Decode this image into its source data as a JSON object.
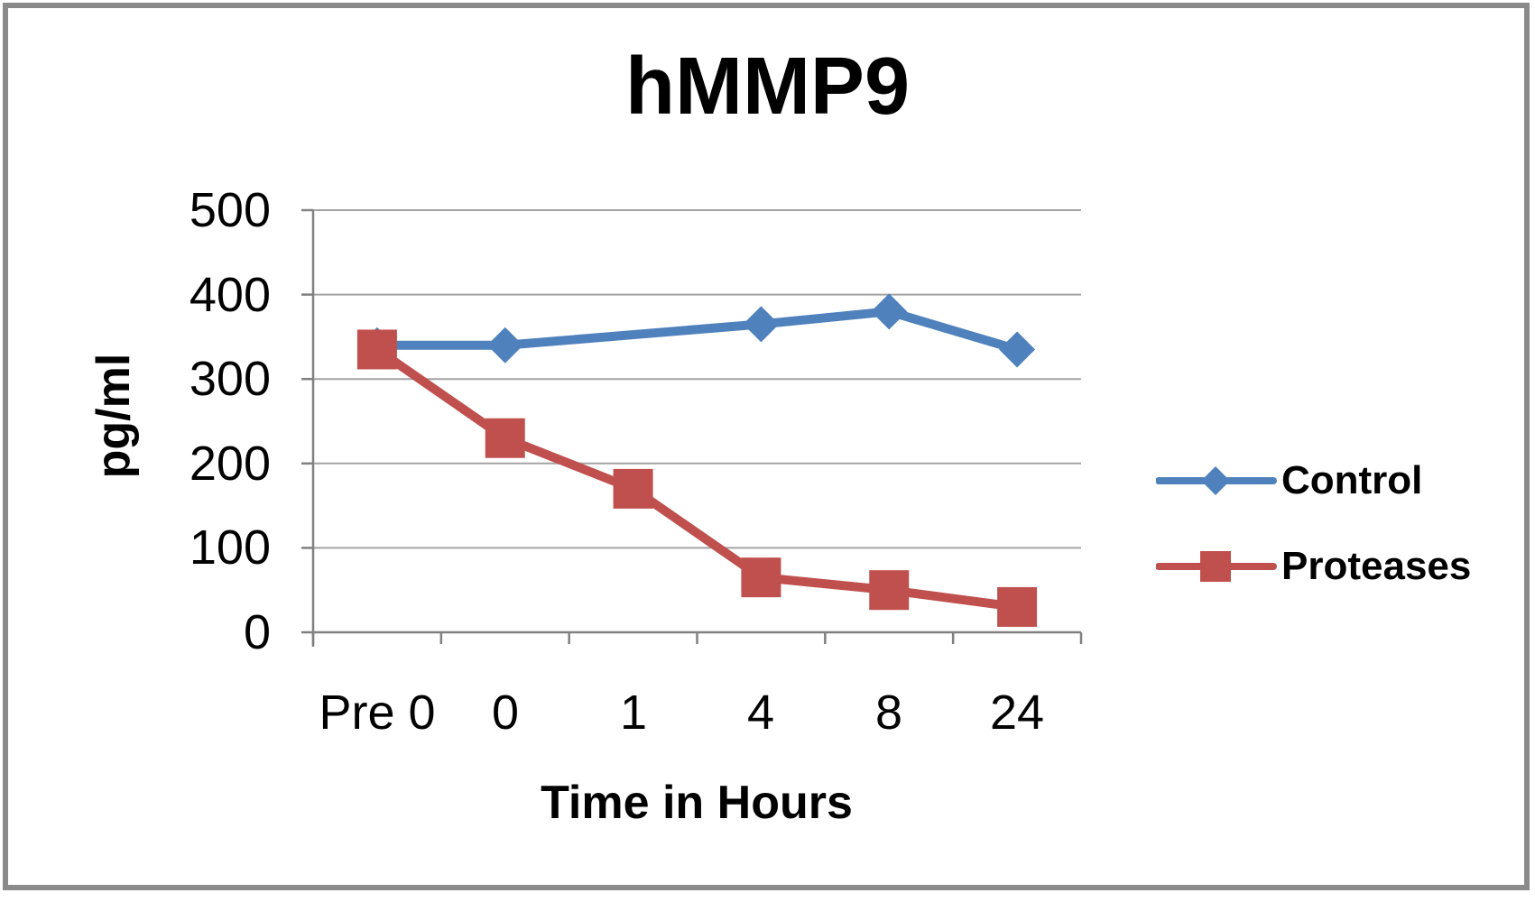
{
  "frame": {
    "border_color": "#8a8a8a",
    "background": "#ffffff"
  },
  "chart_data": {
    "type": "line",
    "title": "hMMP9",
    "ylabel": "pg/ml",
    "xlabel": "Time in Hours",
    "categories": [
      "Pre 0",
      "0",
      "1",
      "4",
      "8",
      "24"
    ],
    "y_tick_labels": [
      "500",
      "400",
      "300",
      "200",
      "100",
      "0"
    ],
    "ylim": [
      0,
      500
    ],
    "y_tick_step": 100,
    "grid": true,
    "legend_position": "right",
    "axis_color": "#808080",
    "gridline_color": "#a3a3a3",
    "series": [
      {
        "name": "Control",
        "color": "#4F81BD",
        "marker": "diamond",
        "values": [
          340,
          340,
          null,
          365,
          380,
          335
        ]
      },
      {
        "name": "Proteases",
        "color": "#C0504D",
        "marker": "square",
        "values": [
          335,
          230,
          170,
          65,
          50,
          30
        ]
      }
    ]
  }
}
